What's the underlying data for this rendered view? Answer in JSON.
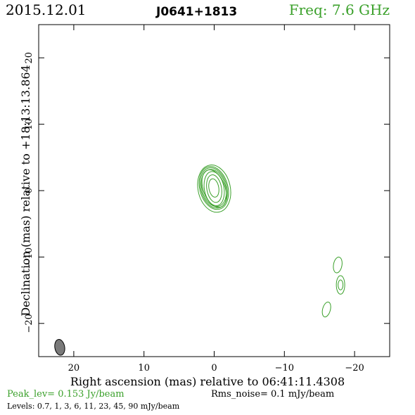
{
  "header": {
    "date": "2015.12.01",
    "source": "J0641+1813",
    "freq": "Freq: 7.6 GHz"
  },
  "footer": {
    "peak": "Peak_lev=  0.153 Jy/beam",
    "rms": "Rms_noise=   0.1 mJy/beam",
    "levels": "Levels: 0.7,   1,   3,   6,  11,  23,  45,  90 mJy/beam"
  },
  "colors": {
    "contour": "#3aa02a",
    "beam": "#7a7a7a",
    "axes": "#000000"
  },
  "chart_data": {
    "type": "contour",
    "xlabel": "Right ascension (mas) relative to 06:41:11.4308",
    "ylabel": "Declination (mas) relative to +18:13:13.864",
    "xlim": [
      25,
      -25
    ],
    "ylim": [
      -25,
      25
    ],
    "x_ticks": [
      20,
      10,
      0,
      -10,
      -20
    ],
    "y_ticks": [
      20,
      10,
      0,
      -10,
      -20
    ],
    "x_tick_labels": [
      "20",
      "10",
      "0",
      "−10",
      "−20"
    ],
    "y_tick_labels": [
      "20",
      "10",
      "0",
      "−10",
      "−20"
    ],
    "contour_levels_mJy": [
      0.7,
      1,
      3,
      6,
      11,
      23,
      45,
      90
    ],
    "components": [
      {
        "ra": 0.0,
        "dec": 0.3,
        "contours": [
          {
            "a": 1.55,
            "b": 2.95,
            "pa": -20
          },
          {
            "a": 2.3,
            "b": 3.6,
            "pa": -12
          },
          {
            "a": 1.4,
            "b": 2.6,
            "pa": -10
          },
          {
            "a": 1.05,
            "b": 2.1,
            "pa": -10
          }
        ]
      },
      {
        "ra": 0.05,
        "dec": 0.4,
        "contours": [
          {
            "a": 2.0,
            "b": 3.3,
            "pa": -15
          },
          {
            "a": 1.85,
            "b": 3.1,
            "pa": -15
          },
          {
            "a": 1.7,
            "b": 2.85,
            "pa": -15
          },
          {
            "a": 0.7,
            "b": 1.4,
            "pa": -10
          }
        ]
      },
      {
        "ra": -17.6,
        "dec": -11.2,
        "contours": [
          {
            "a": 0.6,
            "b": 1.2,
            "pa": 10
          }
        ]
      },
      {
        "ra": -18.0,
        "dec": -14.2,
        "contours": [
          {
            "a": 0.6,
            "b": 1.4,
            "pa": 0
          },
          {
            "a": 0.35,
            "b": 0.75,
            "pa": 0
          }
        ]
      },
      {
        "ra": -16.0,
        "dec": -17.9,
        "contours": [
          {
            "a": 0.55,
            "b": 1.15,
            "pa": 15
          }
        ]
      }
    ],
    "beam": {
      "ra": 22.0,
      "dec": -23.6,
      "a": 0.7,
      "b": 1.2,
      "pa": -10
    }
  }
}
